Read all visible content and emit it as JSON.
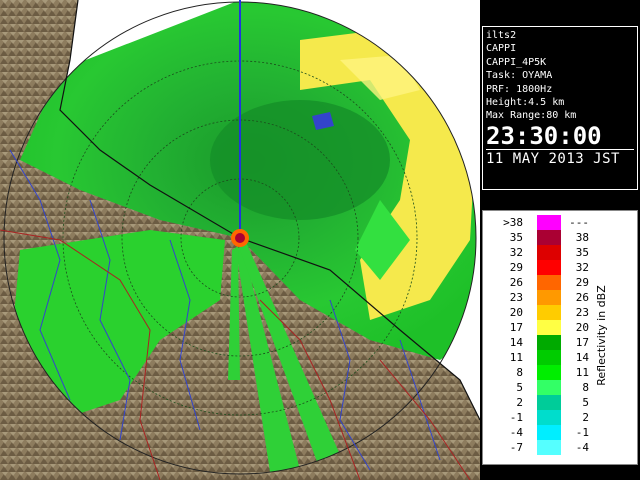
{
  "info": {
    "lines": [
      "ilts2",
      "CAPPI",
      "CAPPI_4P5K",
      "Task: OYAMA",
      "PRF: 1800Hz",
      "Height:4.5 km",
      "Max Range:80 km"
    ],
    "time": "23:30:00",
    "date": "11 MAY 2013 JST"
  },
  "legend": {
    "title": "Reflectivity in dBZ",
    "rows": [
      {
        "lo": ">38",
        "hi": "---",
        "color": "#ff00ff"
      },
      {
        "lo": "35",
        "hi": "38",
        "color": "#aa0033"
      },
      {
        "lo": "32",
        "hi": "35",
        "color": "#dd0000"
      },
      {
        "lo": "29",
        "hi": "32",
        "color": "#ff0000"
      },
      {
        "lo": "26",
        "hi": "29",
        "color": "#ff6600"
      },
      {
        "lo": "23",
        "hi": "26",
        "color": "#ff9900"
      },
      {
        "lo": "20",
        "hi": "23",
        "color": "#ffcc00"
      },
      {
        "lo": "17",
        "hi": "20",
        "color": "#ffff44"
      },
      {
        "lo": "14",
        "hi": "17",
        "color": "#00aa00"
      },
      {
        "lo": "11",
        "hi": "14",
        "color": "#00cc00"
      },
      {
        "lo": "8",
        "hi": "11",
        "color": "#00ee00"
      },
      {
        "lo": "5",
        "hi": "8",
        "color": "#33ff66"
      },
      {
        "lo": "2",
        "hi": "5",
        "color": "#00cc99"
      },
      {
        "lo": "-1",
        "hi": "2",
        "color": "#00ddcc"
      },
      {
        "lo": "-4",
        "hi": "-1",
        "color": "#00eeff"
      },
      {
        "lo": "-7",
        "hi": "-4",
        "color": "#55ffff"
      }
    ]
  },
  "colors": {
    "terrain": "#8a7a5c",
    "sea": "#ffffff",
    "ring": "#333333",
    "rivers": "#3344cc",
    "borders": "#aa2222"
  }
}
